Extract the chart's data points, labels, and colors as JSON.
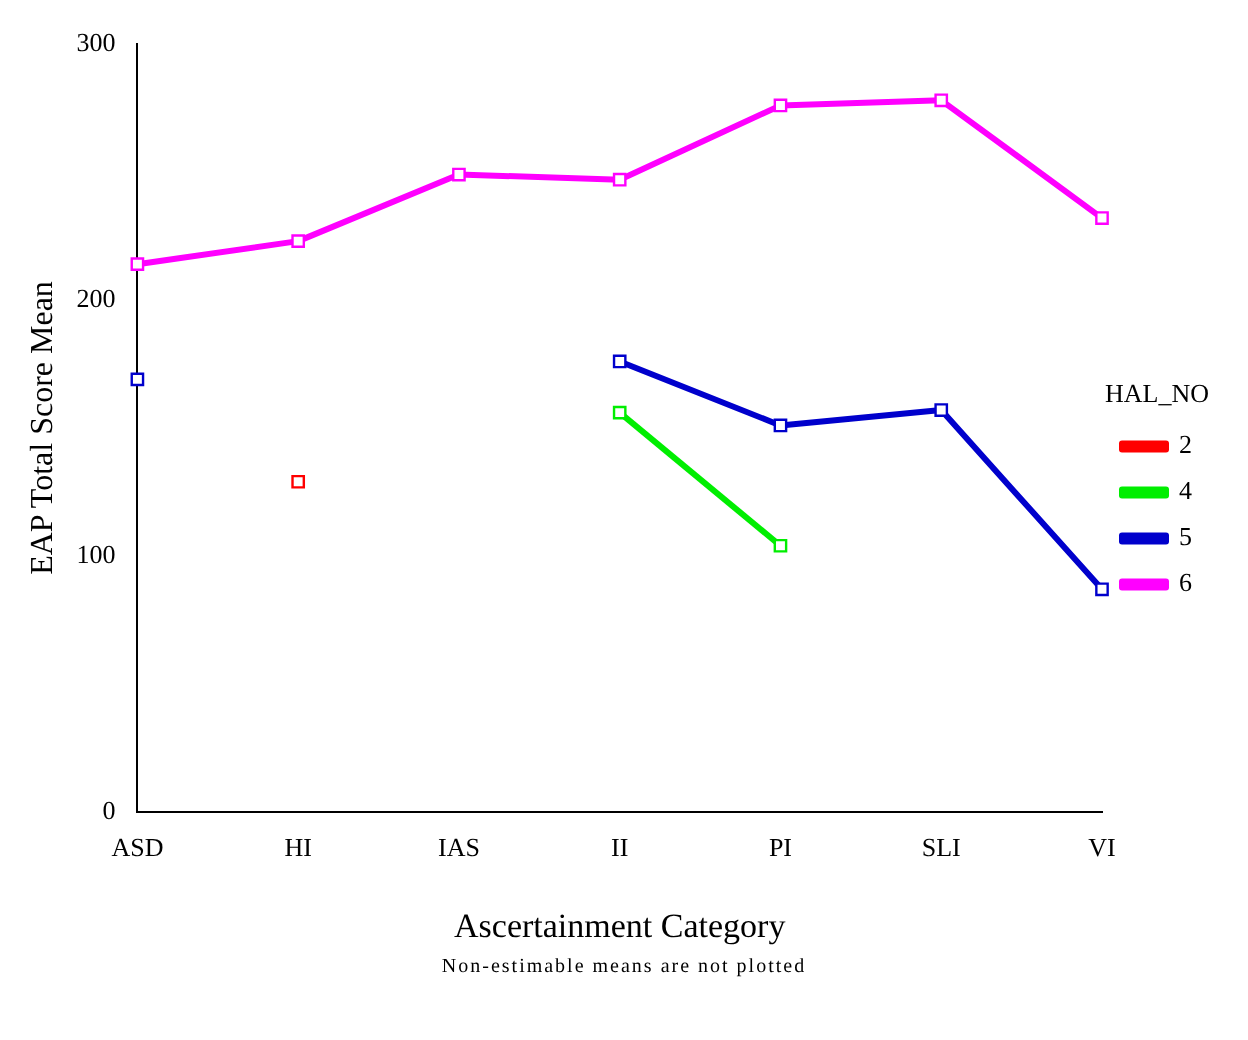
{
  "chart_data": {
    "type": "line",
    "xlabel": "Ascertainment Category",
    "ylabel": "EAP Total Score Mean",
    "legend_title": "HAL_NO",
    "legend": "right",
    "grid": false,
    "marker": "square",
    "line_style": "solid",
    "categories": [
      "ASD",
      "HI",
      "IAS",
      "II",
      "PI",
      "SLI",
      "VI"
    ],
    "ylim": [
      0,
      300
    ],
    "yticks": [
      0,
      100,
      200,
      300
    ],
    "series": [
      {
        "name": "2",
        "color": "#ff0000",
        "values": [
          null,
          129,
          null,
          null,
          null,
          null,
          null
        ]
      },
      {
        "name": "4",
        "color": "#00ee00",
        "values": [
          null,
          null,
          null,
          156,
          104,
          null,
          null
        ]
      },
      {
        "name": "5",
        "color": "#0000cc",
        "values": [
          169,
          null,
          null,
          176,
          151,
          157,
          87
        ]
      },
      {
        "name": "6",
        "color": "#ff00ff",
        "values": [
          214,
          223,
          249,
          247,
          276,
          278,
          232
        ]
      }
    ],
    "annotations": [
      "Non-estimable means are not plotted"
    ]
  }
}
